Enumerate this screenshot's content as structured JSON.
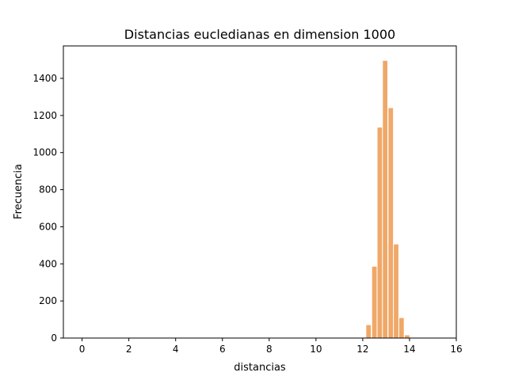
{
  "chart_data": {
    "type": "bar",
    "title": "Distancias eucledianas en dimension 1000",
    "xlabel": "distancias",
    "ylabel": "Frecuencia",
    "xlim": [
      -0.8,
      16
    ],
    "ylim": [
      0,
      1575
    ],
    "xticks": [
      0,
      2,
      4,
      6,
      8,
      10,
      12,
      14,
      16
    ],
    "yticks": [
      0,
      200,
      400,
      600,
      800,
      1000,
      1200,
      1400
    ],
    "bar_color": "#f0a868",
    "bin_width": 0.235,
    "bins": [
      {
        "x0": 12.15,
        "count": 70
      },
      {
        "x0": 12.4,
        "count": 385
      },
      {
        "x0": 12.63,
        "count": 1135
      },
      {
        "x0": 12.86,
        "count": 1495
      },
      {
        "x0": 13.1,
        "count": 1240
      },
      {
        "x0": 13.33,
        "count": 505
      },
      {
        "x0": 13.56,
        "count": 108
      },
      {
        "x0": 13.8,
        "count": 15
      }
    ],
    "grid": false,
    "legend": "none"
  }
}
